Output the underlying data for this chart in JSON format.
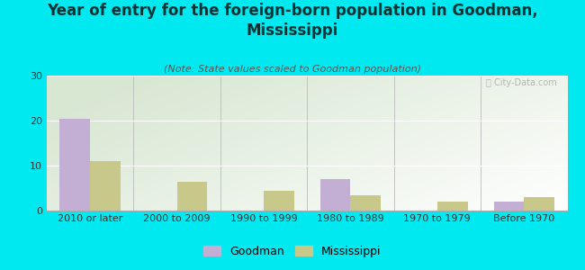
{
  "title": "Year of entry for the foreign-born population in Goodman,\nMississippi",
  "subtitle": "(Note: State values scaled to Goodman population)",
  "categories": [
    "2010 or later",
    "2000 to 2009",
    "1990 to 1999",
    "1980 to 1989",
    "1970 to 1979",
    "Before 1970"
  ],
  "goodman_values": [
    20.5,
    0,
    0,
    7.0,
    0,
    2.0
  ],
  "mississippi_values": [
    11.0,
    6.5,
    4.5,
    3.5,
    2.0,
    3.0
  ],
  "goodman_color": "#c4afd4",
  "mississippi_color": "#c8c88a",
  "background_color": "#00e8f0",
  "ylim": [
    0,
    30
  ],
  "yticks": [
    0,
    10,
    20,
    30
  ],
  "bar_width": 0.35,
  "title_fontsize": 12,
  "subtitle_fontsize": 8,
  "tick_fontsize": 8,
  "legend_fontsize": 9,
  "title_color": "#003333",
  "subtitle_color": "#555555",
  "tick_color": "#333333"
}
